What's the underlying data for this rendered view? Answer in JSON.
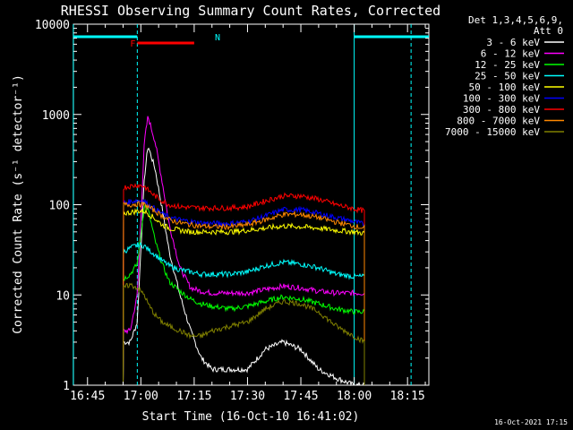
{
  "chart_data": {
    "type": "line",
    "title": "RHESSI Observing Summary Count Rates, Corrected",
    "xlabel": "Start Time (16-Oct-10 16:41:02)",
    "ylabel": "Corrected Count Rate (s⁻¹ detector⁻¹)",
    "y_scale": "log",
    "ylim": [
      1,
      10000
    ],
    "xlim": [
      "16:41:02",
      "18:21:00"
    ],
    "x_ticks": [
      "16:45",
      "17:00",
      "17:15",
      "17:30",
      "17:45",
      "18:00",
      "18:15"
    ],
    "y_ticks": [
      "1",
      "10",
      "100",
      "1000",
      "10000"
    ],
    "legend_header": [
      "Det 1,3,4,5,6,9,",
      "Att 0"
    ],
    "legend_position": "right",
    "footer_date": "16-Oct-2021 17:15",
    "flags": [
      {
        "label": "N",
        "color": "#00ffff",
        "spans": [
          [
            "16:41",
            "16:59"
          ],
          [
            "18:00",
            "18:21"
          ]
        ]
      },
      {
        "label": "F",
        "color": "#ff0000",
        "spans": [
          [
            "16:59",
            "17:15"
          ]
        ]
      }
    ],
    "vertical_markers": [
      {
        "time": "16:41",
        "style": "solid",
        "color": "#00ffff"
      },
      {
        "time": "16:59",
        "style": "dashed",
        "color": "#00ffff"
      },
      {
        "time": "18:00",
        "style": "solid",
        "color": "#00ffff"
      },
      {
        "time": "18:16",
        "style": "dashed",
        "color": "#00ffff"
      }
    ],
    "x": [
      "16:55",
      "16:57",
      "16:59",
      "17:01",
      "17:02",
      "17:04",
      "17:06",
      "17:08",
      "17:11",
      "17:14",
      "17:17",
      "17:20",
      "17:25",
      "17:30",
      "17:35",
      "17:40",
      "17:45",
      "17:50",
      "17:55",
      "18:00",
      "18:03"
    ],
    "series": [
      {
        "name": "3 - 6 keV",
        "color": "#ffffff",
        "values": [
          3,
          3,
          5,
          200,
          450,
          250,
          90,
          30,
          10,
          4,
          2,
          1.5,
          1.5,
          1.5,
          2.5,
          3,
          2.5,
          1.5,
          1.2,
          1,
          1
        ]
      },
      {
        "name": "6 - 12 keV",
        "color": "#ff00ff",
        "values": [
          4,
          4,
          10,
          500,
          950,
          500,
          180,
          60,
          20,
          12,
          11,
          10.5,
          10.5,
          10.5,
          11.5,
          12.5,
          12,
          11,
          10.5,
          10.5,
          10.5
        ]
      },
      {
        "name": "12 - 25 keV",
        "color": "#00ff00",
        "values": [
          15,
          17,
          22,
          100,
          90,
          40,
          22,
          14,
          11,
          9,
          8,
          7.5,
          7,
          7.5,
          8.5,
          9.5,
          9,
          8,
          7,
          6.5,
          6.5
        ]
      },
      {
        "name": "25 - 50 keV",
        "color": "#00ffff",
        "values": [
          30,
          33,
          36,
          35,
          32,
          28,
          24,
          21,
          19,
          18,
          17,
          17,
          17,
          18,
          21,
          23,
          22,
          20,
          17,
          16,
          16
        ]
      },
      {
        "name": "50 - 100 keV",
        "color": "#ffff00",
        "values": [
          80,
          82,
          85,
          85,
          80,
          70,
          60,
          55,
          52,
          50,
          50,
          50,
          50,
          52,
          55,
          58,
          57,
          55,
          52,
          50,
          48
        ]
      },
      {
        "name": "100 - 300 keV",
        "color": "#0000ff",
        "values": [
          105,
          108,
          112,
          110,
          100,
          90,
          80,
          72,
          68,
          65,
          63,
          62,
          62,
          65,
          75,
          88,
          88,
          80,
          72,
          65,
          60
        ]
      },
      {
        "name": "300 - 800 keV",
        "color": "#ff0000",
        "values": [
          155,
          160,
          165,
          160,
          145,
          125,
          110,
          100,
          95,
          93,
          92,
          92,
          92,
          95,
          110,
          125,
          125,
          115,
          100,
          90,
          85
        ]
      },
      {
        "name": "800 - 7000 keV",
        "color": "#ff8800",
        "values": [
          100,
          100,
          102,
          100,
          95,
          85,
          75,
          68,
          63,
          60,
          58,
          57,
          57,
          60,
          68,
          78,
          78,
          72,
          64,
          58,
          55
        ]
      },
      {
        "name": "7000 - 15000 keV",
        "color": "#808000",
        "values": [
          12,
          13,
          12,
          10,
          8,
          6,
          5,
          4.5,
          4,
          3.5,
          3.5,
          4,
          4.5,
          5,
          7,
          8.5,
          8,
          6.5,
          4.5,
          3.5,
          3
        ]
      }
    ]
  }
}
